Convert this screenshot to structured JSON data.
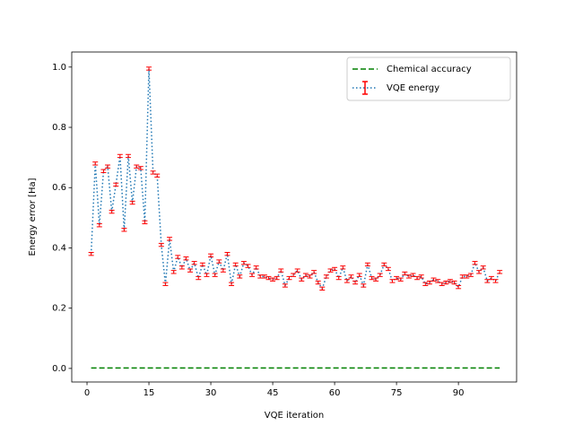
{
  "chart_data": {
    "type": "line",
    "xlabel": "VQE iteration",
    "ylabel": "Energy error [Ha]",
    "xlim": [
      -3.7,
      104.1
    ],
    "ylim": [
      -0.045,
      1.05
    ],
    "xticks": [
      0,
      15,
      30,
      45,
      60,
      75,
      90
    ],
    "yticks": [
      {
        "value": 0,
        "label": "0.0"
      },
      0.2,
      0.4,
      0.6,
      0.8,
      {
        "value": 1,
        "label": "1.0"
      }
    ],
    "legend": "upper right",
    "series": [
      {
        "name": "Chemical accuracy",
        "color": "#008000",
        "linestyle": "dashed",
        "x": [
          1,
          100
        ],
        "values": [
          0.0016,
          0.0016
        ]
      },
      {
        "name": "VQE energy",
        "color": "#1f77b4",
        "error_color": "#ff0000",
        "linestyle": "dotted",
        "x": [
          1,
          2,
          3,
          4,
          5,
          6,
          7,
          8,
          9,
          10,
          11,
          12,
          13,
          14,
          15,
          16,
          17,
          18,
          19,
          20,
          21,
          22,
          23,
          24,
          25,
          26,
          27,
          28,
          29,
          30,
          31,
          32,
          33,
          34,
          35,
          36,
          37,
          38,
          39,
          40,
          41,
          42,
          43,
          44,
          45,
          46,
          47,
          48,
          49,
          50,
          51,
          52,
          53,
          54,
          55,
          56,
          57,
          58,
          59,
          60,
          61,
          62,
          63,
          64,
          65,
          66,
          67,
          68,
          69,
          70,
          71,
          72,
          73,
          74,
          75,
          76,
          77,
          78,
          79,
          80,
          81,
          82,
          83,
          84,
          85,
          86,
          87,
          88,
          89,
          90,
          91,
          92,
          93,
          94,
          95,
          96,
          97,
          98,
          99,
          100
        ],
        "values": [
          0.38,
          0.68,
          0.475,
          0.655,
          0.67,
          0.52,
          0.61,
          0.705,
          0.46,
          0.705,
          0.55,
          0.67,
          0.665,
          0.485,
          0.995,
          0.65,
          0.64,
          0.41,
          0.28,
          0.43,
          0.32,
          0.37,
          0.335,
          0.365,
          0.325,
          0.35,
          0.3,
          0.345,
          0.31,
          0.375,
          0.31,
          0.355,
          0.325,
          0.38,
          0.28,
          0.345,
          0.305,
          0.35,
          0.34,
          0.31,
          0.335,
          0.305,
          0.305,
          0.3,
          0.295,
          0.3,
          0.325,
          0.275,
          0.3,
          0.31,
          0.325,
          0.295,
          0.31,
          0.305,
          0.32,
          0.285,
          0.265,
          0.305,
          0.325,
          0.33,
          0.3,
          0.335,
          0.29,
          0.305,
          0.285,
          0.31,
          0.275,
          0.345,
          0.3,
          0.295,
          0.31,
          0.345,
          0.33,
          0.29,
          0.3,
          0.295,
          0.315,
          0.305,
          0.31,
          0.3,
          0.305,
          0.28,
          0.285,
          0.295,
          0.29,
          0.28,
          0.285,
          0.29,
          0.285,
          0.27,
          0.305,
          0.305,
          0.31,
          0.35,
          0.32,
          0.335,
          0.29,
          0.3,
          0.29,
          0.32
        ],
        "errors": [
          0.005,
          0.005,
          0.005,
          0.005,
          0.005,
          0.005,
          0.005,
          0.005,
          0.005,
          0.005,
          0.005,
          0.005,
          0.005,
          0.005,
          0.005,
          0.005,
          0.005,
          0.005,
          0.005,
          0.005,
          0.005,
          0.005,
          0.005,
          0.005,
          0.005,
          0.005,
          0.005,
          0.005,
          0.005,
          0.005,
          0.005,
          0.005,
          0.005,
          0.005,
          0.005,
          0.005,
          0.005,
          0.005,
          0.005,
          0.005,
          0.005,
          0.005,
          0.005,
          0.005,
          0.005,
          0.005,
          0.005,
          0.005,
          0.005,
          0.005,
          0.005,
          0.005,
          0.005,
          0.005,
          0.005,
          0.005,
          0.005,
          0.005,
          0.005,
          0.005,
          0.005,
          0.005,
          0.005,
          0.005,
          0.005,
          0.005,
          0.005,
          0.005,
          0.005,
          0.005,
          0.005,
          0.005,
          0.005,
          0.005,
          0.005,
          0.005,
          0.005,
          0.005,
          0.005,
          0.005,
          0.005,
          0.005,
          0.005,
          0.005,
          0.005,
          0.005,
          0.005,
          0.005,
          0.005,
          0.005,
          0.005,
          0.005,
          0.005,
          0.005,
          0.005,
          0.005,
          0.005,
          0.005,
          0.005,
          0.005
        ]
      }
    ]
  }
}
